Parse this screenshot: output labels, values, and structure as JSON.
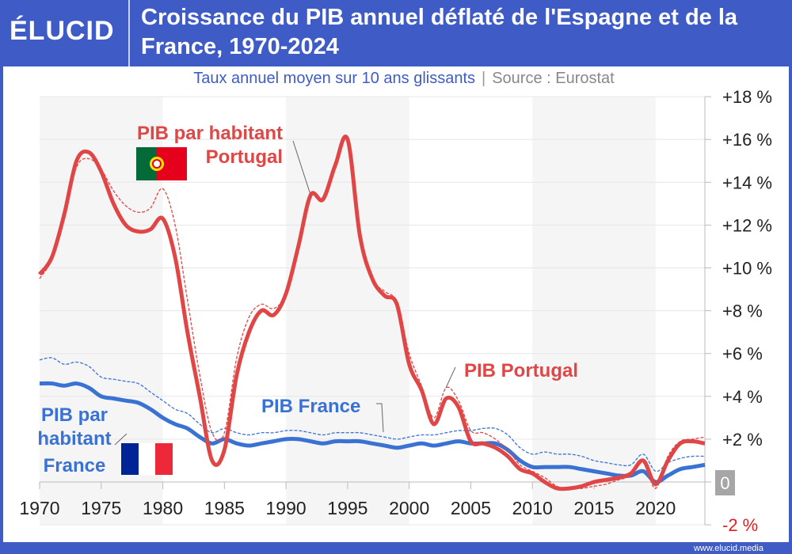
{
  "header": {
    "logo": "ÉLUCID",
    "title": "Croissance du PIB annuel déflaté de l'Espagne et de la France, 1970-2024"
  },
  "subtitle": {
    "text": "Taux annuel moyen sur 10 ans glissants",
    "separator": "|",
    "source": "Source : Eurostat"
  },
  "footer": {
    "url": "www.elucid.media"
  },
  "colors": {
    "brand": "#3f5bc6",
    "portugal": "#e04646",
    "france": "#3a72d4",
    "zero_badge": "#a6a6a6",
    "negative_label": "#e02020"
  },
  "chart_data": {
    "type": "line",
    "title": "Croissance du PIB annuel déflaté de l'Espagne et de la France, 1970-2024",
    "subtitle": "Taux annuel moyen sur 10 ans glissants",
    "xlim": [
      1970,
      2024
    ],
    "ylim": [
      -2,
      18
    ],
    "grid": true,
    "shaded_decades": [
      [
        1970,
        1980
      ],
      [
        1990,
        2000
      ],
      [
        2010,
        2020
      ]
    ],
    "x_ticks": [
      "1970",
      "1975",
      "1980",
      "1985",
      "1990",
      "1995",
      "2000",
      "2005",
      "2010",
      "2015",
      "2020"
    ],
    "y_ticks": [
      {
        "v": 18,
        "label": "+18 %"
      },
      {
        "v": 16,
        "label": "+16 %"
      },
      {
        "v": 14,
        "label": "+14 %"
      },
      {
        "v": 12,
        "label": "+12 %"
      },
      {
        "v": 10,
        "label": "+10 %"
      },
      {
        "v": 8,
        "label": "+8 %"
      },
      {
        "v": 6,
        "label": "+6 %"
      },
      {
        "v": 4,
        "label": "+4 %"
      },
      {
        "v": 2,
        "label": "+2 %"
      },
      {
        "v": 0,
        "label": "0"
      },
      {
        "v": -2,
        "label": "-2 %"
      }
    ],
    "x": [
      1970,
      1971,
      1972,
      1973,
      1974,
      1975,
      1976,
      1977,
      1978,
      1979,
      1980,
      1981,
      1982,
      1983,
      1984,
      1985,
      1986,
      1987,
      1988,
      1989,
      1990,
      1991,
      1992,
      1993,
      1994,
      1995,
      1996,
      1997,
      1998,
      1999,
      2000,
      2001,
      2002,
      2003,
      2004,
      2005,
      2006,
      2007,
      2008,
      2009,
      2010,
      2011,
      2012,
      2013,
      2014,
      2015,
      2016,
      2017,
      2018,
      2019,
      2020,
      2021,
      2022,
      2023,
      2024
    ],
    "series": [
      {
        "name": "PIB par habitant Portugal",
        "style": "solid",
        "color": "#e04646",
        "values": [
          9.7,
          10.5,
          12.5,
          15.0,
          15.4,
          14.5,
          13.0,
          12.0,
          11.7,
          11.8,
          12.3,
          10.5,
          7.0,
          4.0,
          1.0,
          1.5,
          5.0,
          7.0,
          8.0,
          7.8,
          8.8,
          11.0,
          13.4,
          13.2,
          14.8,
          16.0,
          11.5,
          9.5,
          8.7,
          8.3,
          5.5,
          4.3,
          2.7,
          3.9,
          3.5,
          1.9,
          1.8,
          1.6,
          1.2,
          0.6,
          0.4,
          0.0,
          -0.3,
          -0.3,
          -0.2,
          0.0,
          0.1,
          0.2,
          0.4,
          1.0,
          -0.1,
          1.0,
          1.8,
          1.9,
          1.8
        ]
      },
      {
        "name": "PIB Portugal",
        "style": "dashed",
        "color": "#e04646",
        "values": [
          9.5,
          10.4,
          12.3,
          14.7,
          15.1,
          14.6,
          13.6,
          12.9,
          12.6,
          12.8,
          13.7,
          12.0,
          8.5,
          5.0,
          2.3,
          2.3,
          5.8,
          7.7,
          8.3,
          8.1,
          8.8,
          11.0,
          13.4,
          13.2,
          14.8,
          16.0,
          11.5,
          9.5,
          8.9,
          8.4,
          6.0,
          4.5,
          3.0,
          4.4,
          3.8,
          2.4,
          2.3,
          2.0,
          1.5,
          0.8,
          0.5,
          0.2,
          -0.2,
          -0.3,
          -0.3,
          -0.2,
          -0.1,
          0.1,
          0.3,
          0.9,
          -0.3,
          1.2,
          1.9,
          2.0,
          2.1
        ]
      },
      {
        "name": "PIB par habitant France",
        "style": "solid",
        "color": "#3a72d4",
        "values": [
          4.6,
          4.6,
          4.5,
          4.6,
          4.4,
          4.0,
          3.9,
          3.8,
          3.7,
          3.4,
          3.0,
          2.7,
          2.5,
          2.1,
          1.8,
          2.0,
          1.8,
          1.7,
          1.8,
          1.9,
          2.0,
          2.0,
          1.9,
          1.8,
          1.9,
          1.9,
          1.9,
          1.8,
          1.7,
          1.6,
          1.7,
          1.8,
          1.7,
          1.8,
          1.9,
          1.8,
          1.8,
          1.8,
          1.5,
          1.0,
          0.7,
          0.7,
          0.7,
          0.7,
          0.6,
          0.5,
          0.4,
          0.3,
          0.3,
          0.5,
          0.0,
          0.3,
          0.6,
          0.7,
          0.8
        ]
      },
      {
        "name": "PIB France",
        "style": "dashed",
        "color": "#3a72d4",
        "values": [
          5.7,
          5.8,
          5.5,
          5.6,
          5.4,
          4.9,
          4.8,
          4.7,
          4.6,
          4.2,
          3.8,
          3.4,
          3.2,
          2.7,
          2.3,
          2.5,
          2.3,
          2.2,
          2.3,
          2.3,
          2.4,
          2.4,
          2.3,
          2.2,
          2.3,
          2.3,
          2.3,
          2.2,
          2.1,
          2.0,
          2.1,
          2.2,
          2.2,
          2.3,
          2.4,
          2.4,
          2.5,
          2.5,
          2.2,
          1.6,
          1.3,
          1.4,
          1.3,
          1.3,
          1.2,
          1.0,
          0.9,
          0.8,
          0.8,
          1.3,
          0.5,
          0.9,
          1.1,
          1.2,
          1.2
        ]
      }
    ],
    "annotations": {
      "pt_capita_line1": "PIB par habitant",
      "pt_capita_line2": "Portugal",
      "pt_gdp": "PIB Portugal",
      "fr_gdp": "PIB France",
      "fr_capita_line1": "PIB par",
      "fr_capita_line2": "habitant",
      "fr_capita_line3": "France"
    }
  }
}
